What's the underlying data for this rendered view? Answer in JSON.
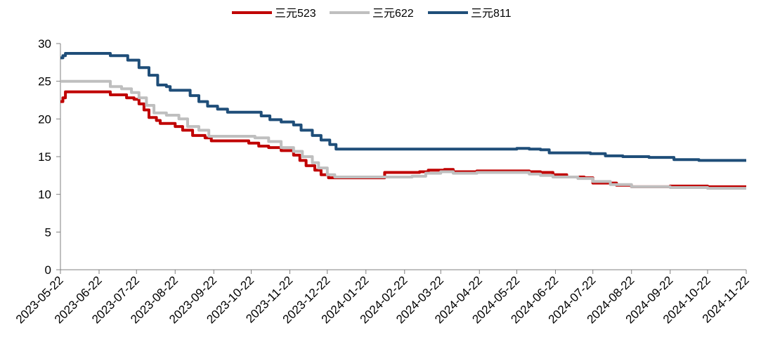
{
  "chart_data": {
    "type": "line",
    "title": "",
    "xlabel": "",
    "ylabel": "",
    "ylim": [
      0,
      30
    ],
    "yticks": [
      0,
      5,
      10,
      15,
      20,
      25,
      30
    ],
    "grid": false,
    "legend_position": "top-center",
    "x_tick_labels": [
      "2023-05-22",
      "2023-06-22",
      "2023-07-22",
      "2023-08-22",
      "2023-09-22",
      "2023-10-22",
      "2023-11-22",
      "2023-12-22",
      "2024-01-22",
      "2024-02-22",
      "2024-03-22",
      "2024-04-22",
      "2024-05-22",
      "2024-06-22",
      "2024-07-22",
      "2024-08-22",
      "2024-09-22",
      "2024-10-22",
      "2024-11-22"
    ],
    "series": [
      {
        "name": "三元523",
        "color": "#C00000",
        "points": [
          [
            "2023-05-22",
            22.3
          ],
          [
            "2023-05-24",
            22.8
          ],
          [
            "2023-05-26",
            23.6
          ],
          [
            "2023-06-15",
            23.6
          ],
          [
            "2023-06-27",
            23.6
          ],
          [
            "2023-07-01",
            23.2
          ],
          [
            "2023-07-10",
            23.2
          ],
          [
            "2023-07-14",
            22.8
          ],
          [
            "2023-07-20",
            22.6
          ],
          [
            "2023-07-24",
            22.0
          ],
          [
            "2023-07-28",
            21.2
          ],
          [
            "2023-08-01",
            20.2
          ],
          [
            "2023-08-07",
            19.8
          ],
          [
            "2023-08-10",
            19.4
          ],
          [
            "2023-08-20",
            19.4
          ],
          [
            "2023-08-22",
            19.0
          ],
          [
            "2023-08-28",
            18.5
          ],
          [
            "2023-09-05",
            17.8
          ],
          [
            "2023-09-15",
            17.5
          ],
          [
            "2023-09-20",
            17.1
          ],
          [
            "2023-10-12",
            17.1
          ],
          [
            "2023-10-20",
            16.8
          ],
          [
            "2023-10-28",
            16.4
          ],
          [
            "2023-11-05",
            16.2
          ],
          [
            "2023-11-15",
            15.8
          ],
          [
            "2023-11-25",
            15.2
          ],
          [
            "2023-11-30",
            14.5
          ],
          [
            "2023-12-05",
            13.8
          ],
          [
            "2023-12-12",
            13.2
          ],
          [
            "2023-12-17",
            12.6
          ],
          [
            "2023-12-23",
            12.2
          ],
          [
            "2024-02-05",
            12.2
          ],
          [
            "2024-02-06",
            12.9
          ],
          [
            "2024-02-15",
            12.9
          ],
          [
            "2024-02-28",
            12.9
          ],
          [
            "2024-03-05",
            13.0
          ],
          [
            "2024-03-12",
            13.2
          ],
          [
            "2024-03-25",
            13.3
          ],
          [
            "2024-04-01",
            13.0
          ],
          [
            "2024-04-20",
            13.1
          ],
          [
            "2024-05-10",
            13.1
          ],
          [
            "2024-06-01",
            13.0
          ],
          [
            "2024-06-10",
            12.9
          ],
          [
            "2024-06-20",
            12.6
          ],
          [
            "2024-07-01",
            12.3
          ],
          [
            "2024-07-15",
            12.2
          ],
          [
            "2024-07-22",
            11.5
          ],
          [
            "2024-08-10",
            11.2
          ],
          [
            "2024-08-22",
            11.0
          ],
          [
            "2024-09-15",
            11.0
          ],
          [
            "2024-09-22",
            11.1
          ],
          [
            "2024-10-10",
            11.1
          ],
          [
            "2024-10-22",
            11.0
          ],
          [
            "2024-11-22",
            11.0
          ]
        ]
      },
      {
        "name": "三元622",
        "color": "#BFBFBF",
        "points": [
          [
            "2023-05-22",
            25.0
          ],
          [
            "2023-06-27",
            25.0
          ],
          [
            "2023-07-01",
            24.3
          ],
          [
            "2023-07-10",
            24.0
          ],
          [
            "2023-07-18",
            23.5
          ],
          [
            "2023-07-24",
            22.8
          ],
          [
            "2023-07-30",
            21.8
          ],
          [
            "2023-08-05",
            20.8
          ],
          [
            "2023-08-15",
            20.5
          ],
          [
            "2023-08-25",
            20.0
          ],
          [
            "2023-09-01",
            19.0
          ],
          [
            "2023-09-10",
            18.5
          ],
          [
            "2023-09-18",
            17.7
          ],
          [
            "2023-10-15",
            17.7
          ],
          [
            "2023-10-25",
            17.5
          ],
          [
            "2023-11-05",
            17.0
          ],
          [
            "2023-11-15",
            16.2
          ],
          [
            "2023-11-25",
            15.7
          ],
          [
            "2023-12-02",
            15.0
          ],
          [
            "2023-12-10",
            14.2
          ],
          [
            "2023-12-15",
            13.5
          ],
          [
            "2023-12-22",
            12.6
          ],
          [
            "2023-12-28",
            12.3
          ],
          [
            "2024-02-15",
            12.3
          ],
          [
            "2024-02-28",
            12.4
          ],
          [
            "2024-03-10",
            12.8
          ],
          [
            "2024-03-22",
            13.0
          ],
          [
            "2024-04-01",
            12.8
          ],
          [
            "2024-04-20",
            12.9
          ],
          [
            "2024-05-20",
            12.9
          ],
          [
            "2024-06-01",
            12.7
          ],
          [
            "2024-06-10",
            12.5
          ],
          [
            "2024-06-20",
            12.3
          ],
          [
            "2024-07-10",
            12.1
          ],
          [
            "2024-07-22",
            11.7
          ],
          [
            "2024-08-05",
            11.3
          ],
          [
            "2024-08-22",
            11.0
          ],
          [
            "2024-09-22",
            10.9
          ],
          [
            "2024-10-22",
            10.8
          ],
          [
            "2024-11-22",
            10.8
          ]
        ]
      },
      {
        "name": "三元811",
        "color": "#1F4E79",
        "points": [
          [
            "2023-05-22",
            28.1
          ],
          [
            "2023-05-24",
            28.4
          ],
          [
            "2023-05-26",
            28.7
          ],
          [
            "2023-06-22",
            28.7
          ],
          [
            "2023-06-30",
            28.7
          ],
          [
            "2023-07-01",
            28.4
          ],
          [
            "2023-07-12",
            28.4
          ],
          [
            "2023-07-15",
            27.8
          ],
          [
            "2023-07-22",
            27.8
          ],
          [
            "2023-07-24",
            26.8
          ],
          [
            "2023-08-01",
            25.8
          ],
          [
            "2023-08-08",
            24.5
          ],
          [
            "2023-08-15",
            24.3
          ],
          [
            "2023-08-18",
            23.8
          ],
          [
            "2023-08-30",
            23.8
          ],
          [
            "2023-09-03",
            23.1
          ],
          [
            "2023-09-10",
            22.3
          ],
          [
            "2023-09-17",
            21.7
          ],
          [
            "2023-09-25",
            21.3
          ],
          [
            "2023-10-03",
            20.9
          ],
          [
            "2023-10-24",
            20.9
          ],
          [
            "2023-10-30",
            20.4
          ],
          [
            "2023-11-06",
            19.9
          ],
          [
            "2023-11-15",
            19.6
          ],
          [
            "2023-11-25",
            19.2
          ],
          [
            "2023-12-01",
            18.5
          ],
          [
            "2023-12-10",
            17.8
          ],
          [
            "2023-12-17",
            17.2
          ],
          [
            "2023-12-24",
            16.6
          ],
          [
            "2023-12-29",
            16.0
          ],
          [
            "2024-03-01",
            16.0
          ],
          [
            "2024-05-22",
            16.1
          ],
          [
            "2024-06-01",
            16.0
          ],
          [
            "2024-06-10",
            15.9
          ],
          [
            "2024-06-17",
            15.5
          ],
          [
            "2024-07-01",
            15.5
          ],
          [
            "2024-07-20",
            15.4
          ],
          [
            "2024-08-01",
            15.1
          ],
          [
            "2024-08-15",
            15.0
          ],
          [
            "2024-09-05",
            14.9
          ],
          [
            "2024-09-22",
            14.9
          ],
          [
            "2024-09-25",
            14.6
          ],
          [
            "2024-10-15",
            14.5
          ],
          [
            "2024-11-22",
            14.5
          ]
        ]
      }
    ]
  }
}
